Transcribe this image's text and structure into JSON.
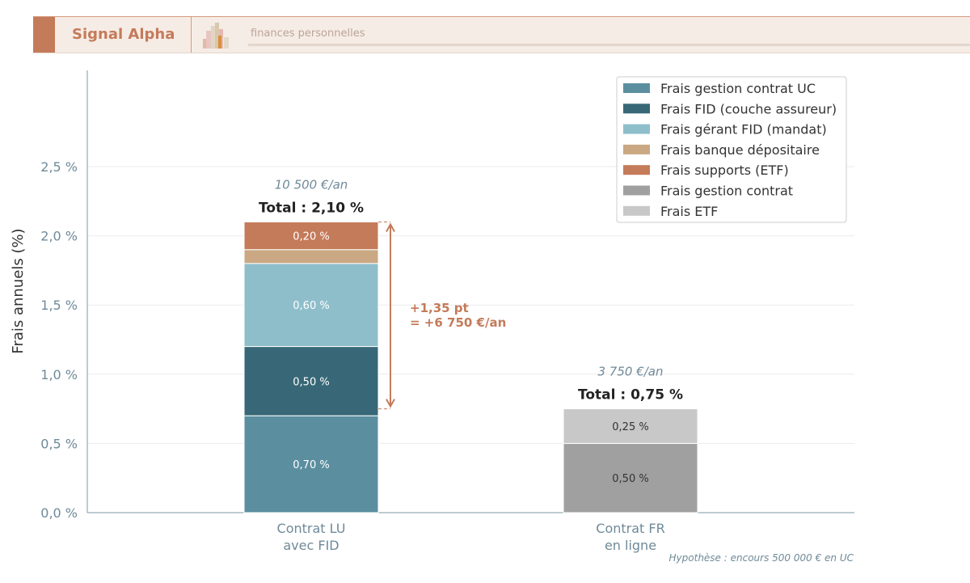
{
  "header": {
    "brand": "Signal Alpha",
    "tagline": "finances personnelles",
    "brand_color": "#c47b5a"
  },
  "chart_data": {
    "type": "bar",
    "stacked": true,
    "ylabel": "Frais annuels (%)",
    "ylim": [
      0,
      3.2
    ],
    "yticks": [
      0,
      0.5,
      1.0,
      1.5,
      2.0,
      2.5
    ],
    "ytick_labels": [
      "0,0 %",
      "0,5 %",
      "1,0 %",
      "1,5 %",
      "2,0 %",
      "2,5 %"
    ],
    "grid": true,
    "legend_position": "top-right",
    "categories": [
      [
        "Contrat LU",
        "avec FID"
      ],
      [
        "Contrat FR",
        "en ligne"
      ]
    ],
    "series": [
      {
        "name": "Frais gestion contrat UC",
        "color": "#5b8fa0",
        "values": [
          0.7,
          0
        ],
        "labels": [
          "0,70 %",
          ""
        ]
      },
      {
        "name": "Frais FID (couche assureur)",
        "color": "#386877",
        "values": [
          0.5,
          0
        ],
        "labels": [
          "0,50 %",
          ""
        ]
      },
      {
        "name": "Frais gérant FID (mandat)",
        "color": "#8fbecb",
        "values": [
          0.6,
          0
        ],
        "labels": [
          "0,60 %",
          ""
        ]
      },
      {
        "name": "Frais banque dépositaire",
        "color": "#c9a883",
        "values": [
          0.1,
          0
        ],
        "labels": [
          "",
          ""
        ]
      },
      {
        "name": "Frais supports (ETF)",
        "color": "#c47b5a",
        "values": [
          0.2,
          0
        ],
        "labels": [
          "0,20 %",
          ""
        ]
      },
      {
        "name": "Frais gestion contrat",
        "color": "#a0a0a0",
        "values": [
          0,
          0.5
        ],
        "labels": [
          "",
          "0,50 %"
        ]
      },
      {
        "name": "Frais ETF",
        "color": "#c8c8c8",
        "values": [
          0,
          0.25
        ],
        "labels": [
          "",
          "0,25 %"
        ]
      }
    ],
    "totals": [
      "Total : 2,10 %",
      "Total : 0,75 %"
    ],
    "annual_costs": [
      "10 500 €/an",
      "3 750 €/an"
    ],
    "annotation": {
      "lines": [
        "+1,35 pt",
        "= +6 750 €/an"
      ],
      "from": 0.75,
      "to": 2.1,
      "color": "#c47b5a"
    },
    "footnote": "Hypothèse : encours 500 000 € en UC"
  }
}
